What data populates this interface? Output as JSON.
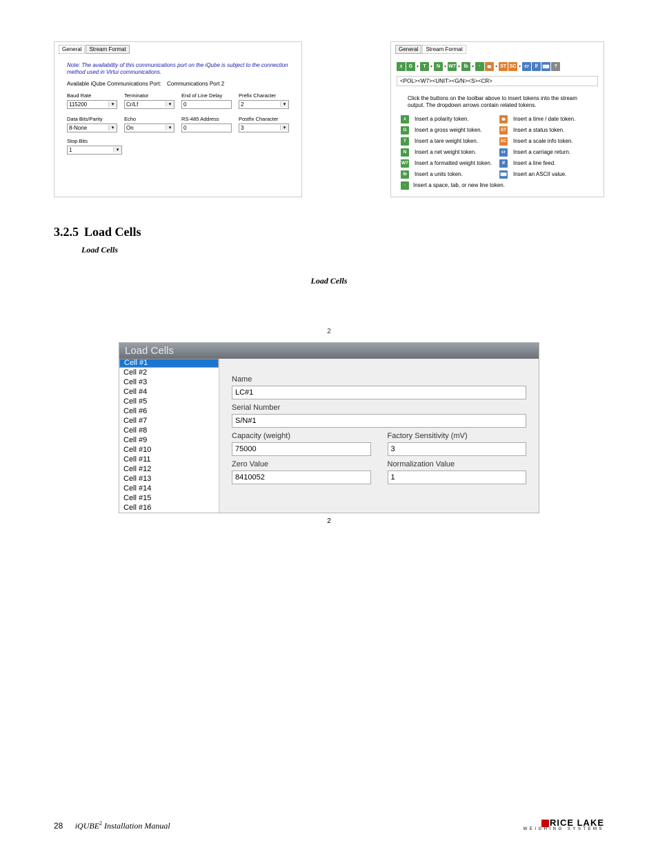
{
  "left": {
    "tab1": "General",
    "tab2": "Stream Format",
    "note": "Note: The availability of this communications port on the iQube is subject to the connection method used in Virtui communications.",
    "avail_lbl": "Available iQube Communications Port:",
    "avail_val": "Communications Port 2",
    "r1": {
      "baud_l": "Baud Rate",
      "baud_v": "115200",
      "term_l": "Terminator",
      "term_v": "Cr/Lf",
      "eol_l": "End of Line Delay",
      "eol_v": "0",
      "pre_l": "Prefix Character",
      "pre_v": "2"
    },
    "r2": {
      "dbp_l": "Data Bits/Parity",
      "dbp_v": "8-None",
      "echo_l": "Echo",
      "echo_v": "On",
      "rs_l": "RS-485 Address",
      "rs_v": "0",
      "post_l": "Postfix Character",
      "post_v": "3"
    },
    "r3": {
      "stop_l": "Stop Bits",
      "stop_v": "1"
    }
  },
  "right": {
    "tab1": "General",
    "tab2": "Stream Format",
    "icons": {
      "pol": "±",
      "g": "G",
      "t": "T",
      "n": "N",
      "w7": "W7",
      "lb": "lb",
      "sp": "·",
      "dt": "⌚",
      "st": "ST",
      "sc": "SC",
      "cr": "cr",
      "lf": "lf",
      "asc": "⌨",
      "q": "?"
    },
    "fmt": "<POL><W7><UNIT><G/N><S><CR>",
    "instr": "Click the buttons on the toolbar above to insert tokens into the stream output. The dropdown arrows contain related tokens.",
    "rows": [
      [
        "g",
        "±",
        "Insert a polarity token.",
        "o",
        "⌚",
        "Insert a time / date token."
      ],
      [
        "g",
        "G",
        "Insert a gross weight token.",
        "o",
        "ST",
        "Insert a status token."
      ],
      [
        "g",
        "T",
        "Insert a tare weight token.",
        "o",
        "SC",
        "Insert a scale info token."
      ],
      [
        "g",
        "N",
        "Insert a net weight token.",
        "b",
        "cr",
        "Insert a carriage return."
      ],
      [
        "g",
        "W7",
        "Insert a formatted weight token.",
        "b",
        "lf",
        "Insert a line feed."
      ],
      [
        "g",
        "lb",
        "Insert a units token.",
        "b",
        "⌨",
        "Insert an ASCII value."
      ]
    ],
    "last": "Insert a space, tab, or new line token."
  },
  "sec": {
    "num": "3.2.5",
    "title": "Load Cells",
    "sub": "Load Cells",
    "sub2": "Load Cells"
  },
  "num2a": "2",
  "lc": {
    "header": "Load Cells",
    "items": [
      "Cell #1",
      "Cell #2",
      "Cell #3",
      "Cell #4",
      "Cell #5",
      "Cell #6",
      "Cell #7",
      "Cell #8",
      "Cell #9",
      "Cell #10",
      "Cell #11",
      "Cell #12",
      "Cell #13",
      "Cell #14",
      "Cell #15",
      "Cell #16"
    ],
    "name_l": "Name",
    "name_v": "LC#1",
    "sn_l": "Serial Number",
    "sn_v": "S/N#1",
    "cap_l": "Capacity (weight)",
    "cap_v": "75000",
    "fs_l": "Factory Sensitivity (mV)",
    "fs_v": "3",
    "zv_l": "Zero Value",
    "zv_v": "8410052",
    "nv_l": "Normalization Value",
    "nv_v": "1"
  },
  "num2b": "2",
  "fut": {
    "page": "28",
    "title_a": "iQUBE",
    "title_sup": "2",
    "title_b": " Installation Manual"
  },
  "logo": {
    "top": "RICE LAKE",
    "sub": "WEIGHING SYSTEMS"
  }
}
